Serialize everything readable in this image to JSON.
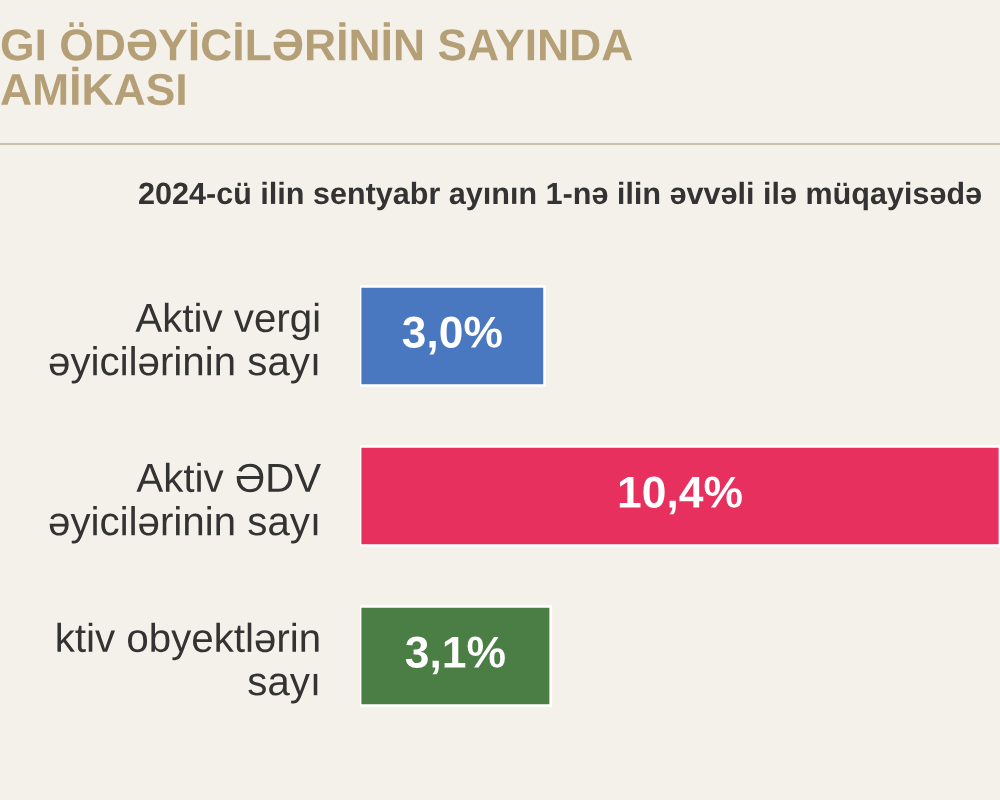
{
  "chart_data": {
    "type": "bar",
    "orientation": "horizontal",
    "title": "GI ÖDƏYİCİLƏRİNİN SAYINDA\nAMİKASI",
    "subtitle": "2024-cü ilin sentyabr ayının 1-nə ilin əvvəli ilə müqayisədə",
    "categories": [
      "Aktiv vergi\nəyicilərinin sayı",
      "Aktiv ƏDV\nəyicilərinin sayı",
      "ktiv obyektlərin\nsayı"
    ],
    "values": [
      3.0,
      10.4,
      3.1
    ],
    "colors": [
      "#4a78c0",
      "#e8305f",
      "#4b7e45"
    ],
    "value_labels": [
      "3,0%",
      "10,4%",
      "3,1%"
    ],
    "xlim": [
      0,
      10.4
    ],
    "tick_labels": false,
    "grid": false,
    "legend": false
  }
}
